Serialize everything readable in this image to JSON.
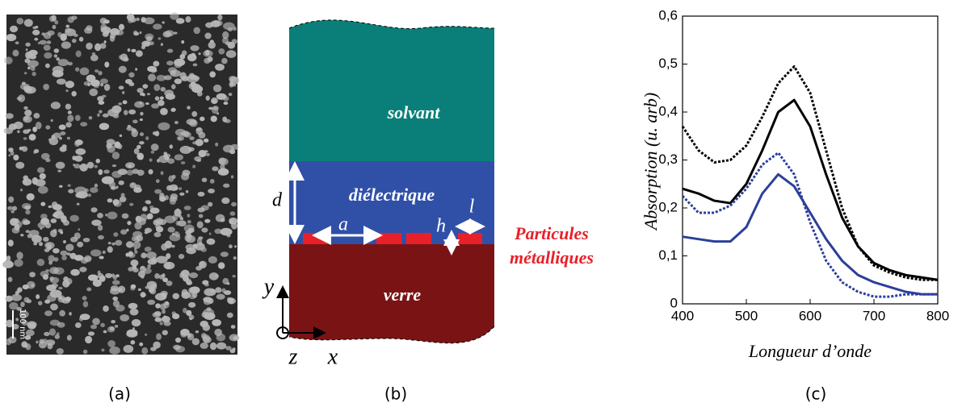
{
  "captions": [
    "(a)",
    "(b)",
    "(c)"
  ],
  "sem_image": {
    "scale_label": "100 nm"
  },
  "diagram": {
    "layers": {
      "solvent": "solvant",
      "dielectric": "diélectrique",
      "glass": "verre"
    },
    "dims": {
      "d": "d",
      "a": "a",
      "h": "h",
      "l": "l"
    },
    "particles_label": [
      "Particules",
      "métalliques"
    ],
    "axes": {
      "x": "x",
      "y": "y",
      "z": "z"
    }
  },
  "chart_data": {
    "type": "line",
    "ylabel": "Absorption (u. arb)",
    "xlabel": "Longueur d’onde",
    "x": [
      400,
      425,
      450,
      475,
      500,
      525,
      550,
      575,
      600,
      625,
      650,
      675,
      700,
      725,
      750,
      775,
      800
    ],
    "series": [
      {
        "color": "#000000",
        "style": "dotted",
        "values": [
          0.37,
          0.32,
          0.295,
          0.3,
          0.33,
          0.39,
          0.46,
          0.495,
          0.44,
          0.32,
          0.2,
          0.12,
          0.08,
          0.065,
          0.055,
          0.05,
          0.05
        ]
      },
      {
        "color": "#000000",
        "style": "solid",
        "values": [
          0.24,
          0.23,
          0.215,
          0.21,
          0.25,
          0.32,
          0.4,
          0.425,
          0.37,
          0.27,
          0.18,
          0.12,
          0.085,
          0.07,
          0.06,
          0.055,
          0.05
        ]
      },
      {
        "color": "#2c3f9a",
        "style": "dotted",
        "values": [
          0.225,
          0.19,
          0.19,
          0.205,
          0.24,
          0.29,
          0.315,
          0.27,
          0.17,
          0.09,
          0.045,
          0.025,
          0.015,
          0.015,
          0.02,
          0.02,
          0.02
        ]
      },
      {
        "color": "#2c3f9a",
        "style": "solid",
        "values": [
          0.14,
          0.135,
          0.13,
          0.13,
          0.16,
          0.23,
          0.27,
          0.245,
          0.19,
          0.135,
          0.09,
          0.06,
          0.045,
          0.035,
          0.025,
          0.02,
          0.02
        ]
      }
    ],
    "xlim": [
      400,
      800
    ],
    "xticks": [
      400,
      500,
      600,
      700,
      800
    ],
    "ylim": [
      0,
      0.6
    ],
    "yticks": [
      0,
      {
        "value": 0.1,
        "label": "0,1"
      },
      {
        "value": 0.2,
        "label": "0,2"
      },
      {
        "value": 0.3,
        "label": "0,3"
      },
      {
        "value": 0.4,
        "label": "0,4"
      },
      {
        "value": 0.5,
        "label": "0,5"
      },
      {
        "value": 0.6,
        "label": "0,6"
      }
    ]
  }
}
